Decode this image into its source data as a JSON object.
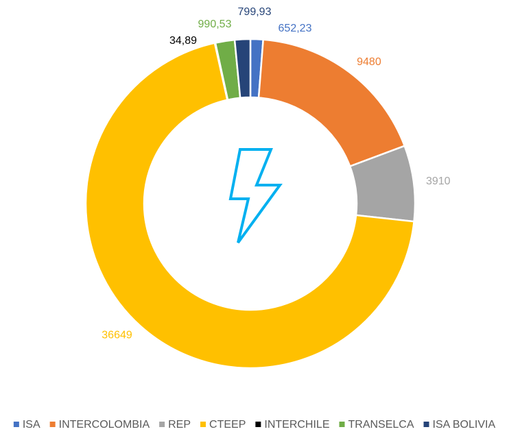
{
  "chart_data": {
    "type": "donut",
    "categories": [
      "ISA",
      "INTERCOLOMBIA",
      "REP",
      "CTEEP",
      "INTERCHILE",
      "TRANSELCA",
      "ISA BOLIVIA"
    ],
    "values": [
      652.23,
      9480,
      3910,
      36649,
      34.89,
      990.53,
      799.93
    ],
    "value_labels": [
      "652,23",
      "9480",
      "3910",
      "36649",
      "34,89",
      "990,53",
      "799,93"
    ],
    "colors": [
      "#4472c4",
      "#ed7d31",
      "#a5a5a5",
      "#ffc000",
      "#000000",
      "#70ad47",
      "#264478"
    ],
    "legend": "bottom"
  }
}
